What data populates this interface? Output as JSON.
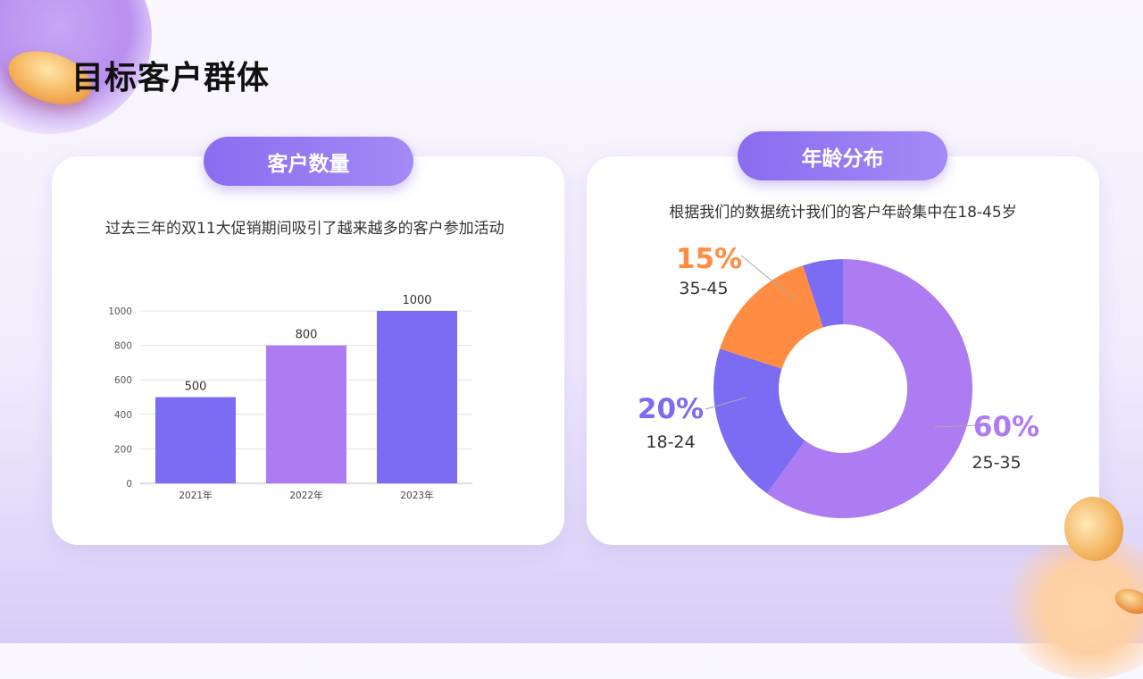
{
  "page": {
    "title": "目标客户群体"
  },
  "left_panel": {
    "pill_label": "客户数量",
    "description": "过去三年的双11大促销期间吸引了越来越多的客户参加活动"
  },
  "right_panel": {
    "pill_label": "年龄分布",
    "description": "根据我们的数据统计我们的客户年龄集中在18-45岁"
  },
  "colors": {
    "accent_purple": "#7b6cf3",
    "light_purple": "#ad7bf2",
    "orange": "#ff8c42"
  },
  "chart_data": [
    {
      "type": "bar",
      "categories": [
        "2021年",
        "2022年",
        "2023年"
      ],
      "values": [
        500,
        800,
        1000
      ],
      "bar_colors": [
        "#7b6cf3",
        "#ad7bf2",
        "#7b6cf3"
      ],
      "yticks": [
        0,
        200,
        400,
        600,
        800,
        1000
      ],
      "ylim": [
        0,
        1000
      ],
      "grid": true
    },
    {
      "type": "pie",
      "donut": true,
      "slices": [
        {
          "label": "25-35",
          "value": 60,
          "display": "60%",
          "color": "#ad7bf2"
        },
        {
          "label": "18-24",
          "value": 20,
          "display": "20%",
          "color": "#7b6cf3"
        },
        {
          "label": "35-45",
          "value": 15,
          "display": "15%",
          "color": "#ff8c42"
        }
      ]
    }
  ]
}
